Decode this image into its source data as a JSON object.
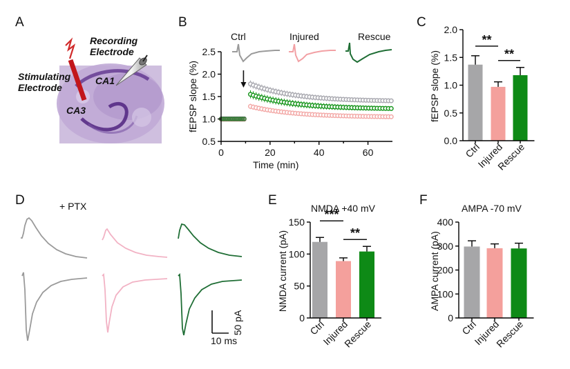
{
  "panels": {
    "A": {
      "letter": "A",
      "labels": {
        "recording": [
          "Recording",
          "Electrode"
        ],
        "stimulating": [
          "Stimulating",
          "Electrode"
        ],
        "ca1": "CA1",
        "ca3": "CA3"
      }
    },
    "B": {
      "letter": "B"
    },
    "C": {
      "letter": "C"
    },
    "D": {
      "letter": "D",
      "condition_label": "+ PTX",
      "scale_current": "50 pA",
      "scale_time": "10 ms"
    },
    "E": {
      "letter": "E"
    },
    "F": {
      "letter": "F"
    }
  },
  "colors": {
    "ctrl": "#a6a6a8",
    "injured": "#f4a09c",
    "rescue": "#0e8a16",
    "trace_ctrl": "#9a9a9a",
    "trace_injured": "#f2b2c4",
    "trace_rescue": "#1f6e35",
    "ltp_ctrl": "#a9a9b0",
    "ltp_injured": "#f3a9a7",
    "ltp_rescue": "#17961c",
    "slice": "#b9a3cf"
  },
  "chart_data": [
    {
      "id": "B",
      "type": "line",
      "xlabel": "Time (min)",
      "ylabel": "fEPSP slope (%)",
      "xlim": [
        0,
        70
      ],
      "ylim": [
        0.5,
        2.5
      ],
      "xticks": [
        0,
        20,
        40,
        60
      ],
      "yticks": [
        "0.5",
        "1.0",
        "1.5",
        "2.0",
        "2.5"
      ],
      "arrow_x": 10,
      "legend_traces": [
        "Ctrl",
        "Injured",
        "Rescue"
      ],
      "series": [
        {
          "name": "Ctrl",
          "baseline": 1.0,
          "post_start": 12,
          "post_end": 69.5,
          "start_value": 1.78,
          "end_value": 1.39,
          "err": 0.08
        },
        {
          "name": "Injured",
          "baseline": 1.0,
          "post_start": 12,
          "post_end": 69.5,
          "start_value": 1.28,
          "end_value": 1.04,
          "err": 0.06
        },
        {
          "name": "Rescue",
          "baseline": 1.0,
          "post_start": 12,
          "post_end": 69.5,
          "start_value": 1.55,
          "end_value": 1.22,
          "err": 0.09
        }
      ]
    },
    {
      "id": "C",
      "type": "bar",
      "ylabel": "fEPSP slope (%)",
      "ylim": [
        0,
        2.0
      ],
      "yticks": [
        "0.0",
        "0.5",
        "1.0",
        "1.5",
        "2.0"
      ],
      "categories": [
        "Ctrl",
        "Injured",
        "Rescue"
      ],
      "values": [
        1.37,
        0.97,
        1.18
      ],
      "errors": [
        0.16,
        0.09,
        0.14
      ],
      "significance": [
        {
          "from": 0,
          "to": 1,
          "label": "**"
        },
        {
          "from": 1,
          "to": 2,
          "label": "**"
        }
      ]
    },
    {
      "id": "E",
      "type": "bar",
      "title": "NMDA +40 mV",
      "ylabel": "NMDA current (pA)",
      "ylim": [
        0,
        150
      ],
      "yticks": [
        "0",
        "50",
        "100",
        "150"
      ],
      "categories": [
        "Ctrl",
        "Injured",
        "Rescue"
      ],
      "values": [
        119,
        89,
        104
      ],
      "errors": [
        7,
        5,
        8
      ],
      "significance": [
        {
          "from": 0,
          "to": 1,
          "label": "***"
        },
        {
          "from": 1,
          "to": 2,
          "label": "**"
        }
      ]
    },
    {
      "id": "F",
      "type": "bar",
      "title": "AMPA -70 mV",
      "ylabel": "AMPA current (pA)",
      "ylim": [
        0,
        400
      ],
      "yticks": [
        "0",
        "100",
        "200",
        "300",
        "400"
      ],
      "categories": [
        "Ctrl",
        "Injured",
        "Rescue"
      ],
      "values": [
        298,
        291,
        290
      ],
      "errors": [
        24,
        18,
        22
      ],
      "significance": []
    }
  ]
}
